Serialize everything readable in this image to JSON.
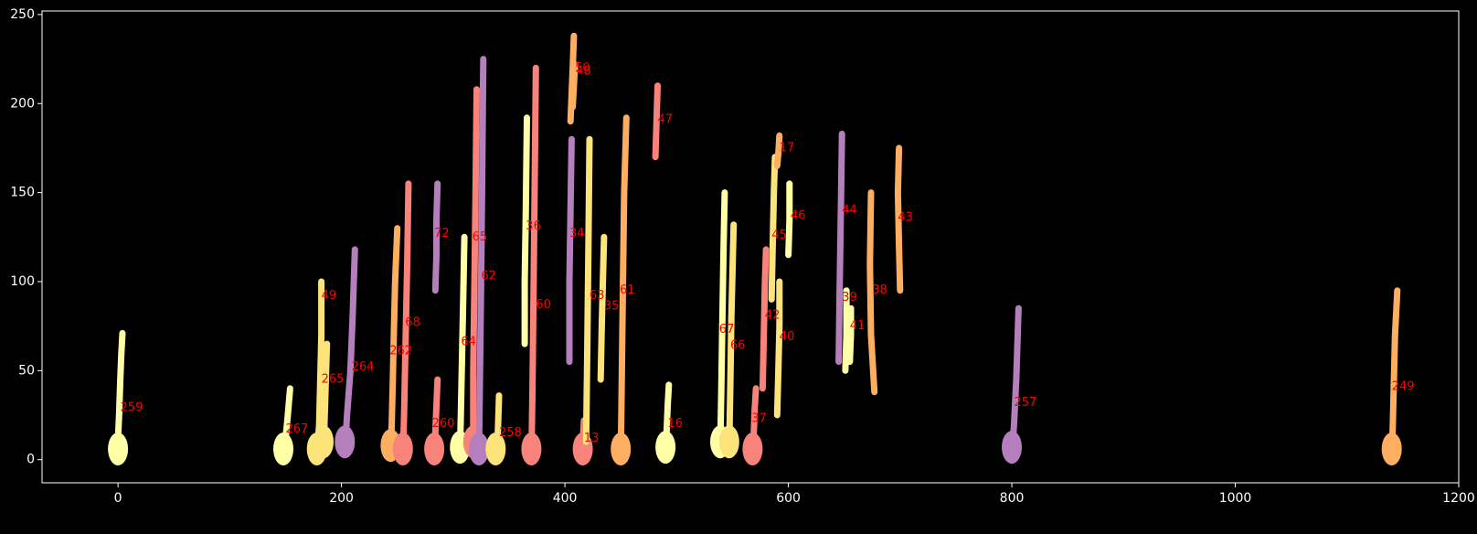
{
  "chart_data": {
    "type": "scatter",
    "title": "",
    "xlabel": "",
    "ylabel": "",
    "xlim": [
      -68,
      1200
    ],
    "ylim": [
      -13,
      252
    ],
    "x_ticks": [
      "0",
      "200",
      "400",
      "600",
      "800",
      "1000",
      "1200"
    ],
    "y_ticks": [
      "0",
      "50",
      "100",
      "150",
      "200",
      "250"
    ],
    "background": "#000000",
    "axis_color": "#ffffff",
    "label_color": "#ff0000",
    "palette": {
      "purple": "#b57fbd",
      "red": "#f7837a",
      "orange": "#fdae61",
      "gold": "#fde47a",
      "pale": "#ffffa5"
    },
    "tracks": [
      {
        "label": "259",
        "color": "pale",
        "label_x": 2,
        "label_y": 29,
        "path": [
          [
            0,
            1
          ],
          [
            0,
            12
          ],
          [
            1,
            25
          ],
          [
            2,
            45
          ],
          [
            3,
            60
          ],
          [
            4,
            71
          ]
        ]
      },
      {
        "label": "267",
        "color": "pale",
        "label_x": 150,
        "label_y": 17,
        "path": [
          [
            148,
            1
          ],
          [
            150,
            12
          ],
          [
            152,
            25
          ],
          [
            154,
            40
          ]
        ]
      },
      {
        "label": "49",
        "color": "gold",
        "label_x": 182,
        "label_y": 92,
        "path": [
          [
            178,
            1
          ],
          [
            180,
            20
          ],
          [
            181,
            45
          ],
          [
            182,
            70
          ],
          [
            182,
            100
          ]
        ]
      },
      {
        "label": "265",
        "color": "gold",
        "label_x": 182,
        "label_y": 45,
        "path": [
          [
            184,
            5
          ],
          [
            185,
            25
          ],
          [
            186,
            45
          ],
          [
            187,
            65
          ]
        ]
      },
      {
        "label": "264",
        "color": "purple",
        "label_x": 209,
        "label_y": 52,
        "path": [
          [
            203,
            5
          ],
          [
            205,
            25
          ],
          [
            208,
            50
          ],
          [
            210,
            80
          ],
          [
            212,
            118
          ]
        ]
      },
      {
        "label": "262",
        "color": "orange",
        "label_x": 243,
        "label_y": 61,
        "path": [
          [
            244,
            3
          ],
          [
            245,
            20
          ],
          [
            246,
            45
          ],
          [
            247,
            75
          ],
          [
            248,
            100
          ],
          [
            250,
            130
          ]
        ]
      },
      {
        "label": "68",
        "color": "red",
        "label_x": 257,
        "label_y": 77,
        "path": [
          [
            255,
            1
          ],
          [
            256,
            25
          ],
          [
            257,
            55
          ],
          [
            258,
            85
          ],
          [
            259,
            115
          ],
          [
            260,
            155
          ]
        ]
      },
      {
        "label": "260",
        "color": "red",
        "label_x": 281,
        "label_y": 20,
        "path": [
          [
            283,
            1
          ],
          [
            284,
            15
          ],
          [
            285,
            30
          ],
          [
            286,
            45
          ]
        ]
      },
      {
        "label": "72",
        "color": "purple",
        "label_x": 283,
        "label_y": 127,
        "path": [
          [
            284,
            95
          ],
          [
            285,
            115
          ],
          [
            285,
            135
          ],
          [
            286,
            155
          ]
        ]
      },
      {
        "label": "64",
        "color": "pale",
        "label_x": 307,
        "label_y": 66,
        "path": [
          [
            306,
            2
          ],
          [
            307,
            30
          ],
          [
            308,
            60
          ],
          [
            309,
            90
          ],
          [
            310,
            125
          ]
        ]
      },
      {
        "label": "65",
        "color": "red",
        "label_x": 317,
        "label_y": 125,
        "path": [
          [
            318,
            5
          ],
          [
            318,
            50
          ],
          [
            319,
            100
          ],
          [
            320,
            150
          ],
          [
            321,
            208
          ]
        ]
      },
      {
        "label": "62",
        "color": "purple",
        "label_x": 325,
        "label_y": 103,
        "path": [
          [
            323,
            1
          ],
          [
            324,
            50
          ],
          [
            325,
            100
          ],
          [
            326,
            160
          ],
          [
            327,
            225
          ]
        ]
      },
      {
        "label": "258",
        "color": "gold",
        "label_x": 341,
        "label_y": 15,
        "path": [
          [
            338,
            1
          ],
          [
            340,
            15
          ],
          [
            341,
            36
          ]
        ]
      },
      {
        "label": "36",
        "color": "pale",
        "label_x": 365,
        "label_y": 131,
        "path": [
          [
            364,
            65
          ],
          [
            364,
            100
          ],
          [
            365,
            140
          ],
          [
            366,
            192
          ]
        ]
      },
      {
        "label": "60",
        "color": "red",
        "label_x": 374,
        "label_y": 87,
        "path": [
          [
            370,
            1
          ],
          [
            371,
            40
          ],
          [
            372,
            100
          ],
          [
            373,
            160
          ],
          [
            374,
            220
          ]
        ]
      },
      {
        "label": "34",
        "color": "purple",
        "label_x": 404,
        "label_y": 127,
        "path": [
          [
            404,
            55
          ],
          [
            404,
            100
          ],
          [
            405,
            140
          ],
          [
            406,
            180
          ]
        ]
      },
      {
        "label": "50",
        "color": "orange",
        "label_x": 409,
        "label_y": 220,
        "path": [
          [
            405,
            190
          ],
          [
            406,
            205
          ],
          [
            407,
            220
          ],
          [
            408,
            238
          ]
        ]
      },
      {
        "label": "48",
        "color": "orange",
        "label_x": 410,
        "label_y": 218,
        "path": [
          [
            407,
            198
          ],
          [
            408,
            210
          ],
          [
            409,
            222
          ]
        ]
      },
      {
        "label": "13",
        "color": "red",
        "label_x": 417,
        "label_y": 12,
        "path": [
          [
            416,
            1
          ],
          [
            416,
            10
          ],
          [
            417,
            22
          ]
        ]
      },
      {
        "label": "63",
        "color": "gold",
        "label_x": 422,
        "label_y": 92,
        "path": [
          [
            419,
            10
          ],
          [
            420,
            60
          ],
          [
            421,
            120
          ],
          [
            422,
            180
          ]
        ]
      },
      {
        "label": "35",
        "color": "gold",
        "label_x": 435,
        "label_y": 86,
        "path": [
          [
            432,
            45
          ],
          [
            433,
            75
          ],
          [
            434,
            100
          ],
          [
            435,
            125
          ]
        ]
      },
      {
        "label": "61",
        "color": "orange",
        "label_x": 449,
        "label_y": 95,
        "path": [
          [
            450,
            1
          ],
          [
            451,
            50
          ],
          [
            452,
            100
          ],
          [
            453,
            150
          ],
          [
            455,
            192
          ]
        ]
      },
      {
        "label": "47",
        "color": "red",
        "label_x": 483,
        "label_y": 191,
        "path": [
          [
            481,
            170
          ],
          [
            482,
            190
          ],
          [
            483,
            210
          ]
        ]
      },
      {
        "label": "16",
        "color": "pale",
        "label_x": 492,
        "label_y": 20,
        "path": [
          [
            490,
            2
          ],
          [
            491,
            15
          ],
          [
            492,
            30
          ],
          [
            493,
            42
          ]
        ]
      },
      {
        "label": "67",
        "color": "pale",
        "label_x": 538,
        "label_y": 73,
        "path": [
          [
            539,
            5
          ],
          [
            540,
            40
          ],
          [
            541,
            80
          ],
          [
            542,
            120
          ],
          [
            543,
            150
          ]
        ]
      },
      {
        "label": "66",
        "color": "gold",
        "label_x": 548,
        "label_y": 64,
        "path": [
          [
            547,
            5
          ],
          [
            548,
            40
          ],
          [
            549,
            80
          ],
          [
            550,
            105
          ],
          [
            551,
            132
          ]
        ]
      },
      {
        "label": "37",
        "color": "red",
        "label_x": 567,
        "label_y": 23,
        "path": [
          [
            568,
            1
          ],
          [
            569,
            15
          ],
          [
            570,
            30
          ],
          [
            571,
            40
          ]
        ]
      },
      {
        "label": "42",
        "color": "red",
        "label_x": 579,
        "label_y": 81,
        "path": [
          [
            577,
            40
          ],
          [
            578,
            70
          ],
          [
            579,
            100
          ],
          [
            580,
            118
          ]
        ]
      },
      {
        "label": "45",
        "color": "gold",
        "label_x": 585,
        "label_y": 126,
        "path": [
          [
            585,
            90
          ],
          [
            586,
            120
          ],
          [
            587,
            150
          ],
          [
            588,
            170
          ]
        ]
      },
      {
        "label": "40",
        "color": "gold",
        "label_x": 592,
        "label_y": 69,
        "path": [
          [
            590,
            25
          ],
          [
            591,
            50
          ],
          [
            592,
            75
          ],
          [
            592,
            100
          ]
        ]
      },
      {
        "label": "17",
        "color": "orange",
        "label_x": 592,
        "label_y": 175,
        "path": [
          [
            590,
            165
          ],
          [
            591,
            172
          ],
          [
            592,
            182
          ]
        ]
      },
      {
        "label": "46",
        "color": "pale",
        "label_x": 602,
        "label_y": 137,
        "path": [
          [
            600,
            115
          ],
          [
            601,
            135
          ],
          [
            601,
            155
          ]
        ]
      },
      {
        "label": "44",
        "color": "purple",
        "label_x": 648,
        "label_y": 140,
        "path": [
          [
            645,
            55
          ],
          [
            646,
            100
          ],
          [
            647,
            140
          ],
          [
            648,
            183
          ]
        ]
      },
      {
        "label": "39",
        "color": "pale",
        "label_x": 648,
        "label_y": 91,
        "path": [
          [
            651,
            50
          ],
          [
            652,
            70
          ],
          [
            652,
            95
          ]
        ]
      },
      {
        "label": "41",
        "color": "pale",
        "label_x": 655,
        "label_y": 75,
        "path": [
          [
            655,
            55
          ],
          [
            656,
            70
          ],
          [
            656,
            85
          ]
        ]
      },
      {
        "label": "38",
        "color": "orange",
        "label_x": 675,
        "label_y": 95,
        "path": [
          [
            677,
            38
          ],
          [
            674,
            70
          ],
          [
            673,
            110
          ],
          [
            674,
            150
          ]
        ]
      },
      {
        "label": "43",
        "color": "orange",
        "label_x": 698,
        "label_y": 136,
        "path": [
          [
            700,
            95
          ],
          [
            699,
            120
          ],
          [
            698,
            150
          ],
          [
            699,
            175
          ]
        ]
      },
      {
        "label": "257",
        "color": "purple",
        "label_x": 802,
        "label_y": 32,
        "path": [
          [
            800,
            2
          ],
          [
            802,
            20
          ],
          [
            804,
            45
          ],
          [
            806,
            85
          ]
        ]
      },
      {
        "label": "249",
        "color": "orange",
        "label_x": 1140,
        "label_y": 41,
        "path": [
          [
            1140,
            1
          ],
          [
            1141,
            20
          ],
          [
            1142,
            45
          ],
          [
            1143,
            70
          ],
          [
            1145,
            95
          ]
        ]
      }
    ]
  }
}
